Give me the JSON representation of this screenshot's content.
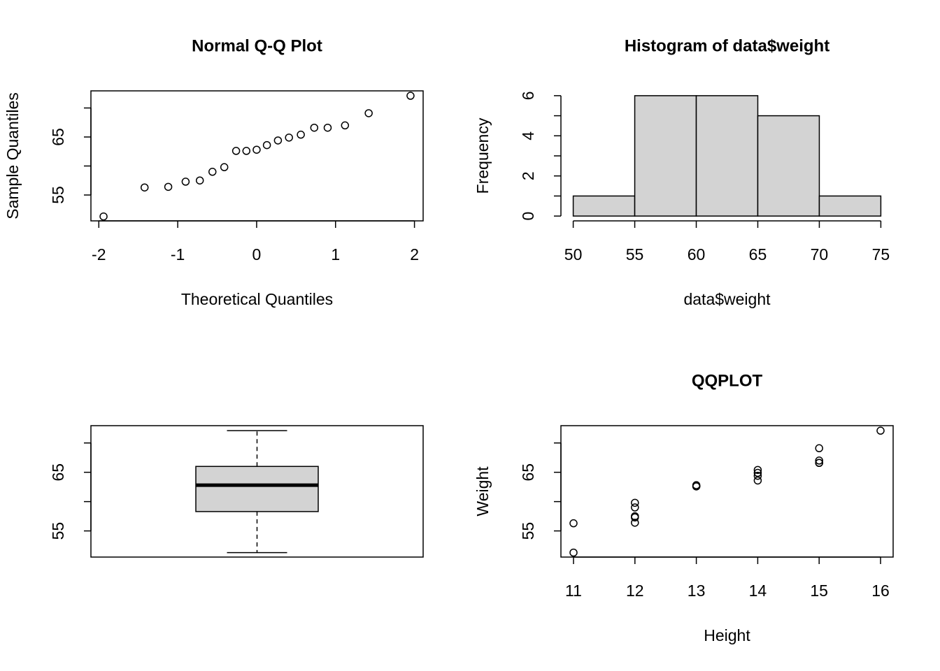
{
  "chart_data": [
    {
      "type": "scatter",
      "title": "Normal Q-Q Plot",
      "xlabel": "Theoretical Quantiles",
      "ylabel": "Sample Quantiles",
      "x": [
        -1.94,
        -1.42,
        -1.12,
        -0.9,
        -0.72,
        -0.56,
        -0.41,
        -0.26,
        -0.13,
        0,
        0.13,
        0.27,
        0.41,
        0.56,
        0.73,
        0.9,
        1.12,
        1.42,
        1.95
      ],
      "values": [
        51.3,
        56.3,
        56.4,
        57.3,
        57.5,
        59.0,
        59.8,
        62.6,
        62.6,
        62.8,
        63.6,
        64.4,
        64.9,
        65.4,
        66.6,
        66.6,
        67.0,
        69.1,
        72.1
      ],
      "xlim": [
        -2.1,
        2.11
      ],
      "ylim": [
        50.54,
        72.95
      ],
      "xticks": [
        -2,
        -1,
        0,
        1,
        2
      ],
      "yticks": [
        55,
        65
      ],
      "yminor_ticks": [
        60,
        70
      ],
      "frame": true,
      "color": "#000000"
    },
    {
      "type": "histogram",
      "title": "Histogram of data$weight",
      "xlabel": "data$weight",
      "ylabel": "Frequency",
      "bins": [
        50,
        55,
        60,
        65,
        70,
        75
      ],
      "values": [
        1,
        6,
        6,
        5,
        1
      ],
      "xlim": [
        50,
        75
      ],
      "ylim": [
        0,
        6
      ],
      "xticks": [
        50,
        55,
        60,
        65,
        70,
        75
      ],
      "yticks": [
        0,
        2,
        4,
        6
      ],
      "yminor_ticks": [
        1,
        3,
        5
      ],
      "frame": false,
      "color": "#d3d3d3"
    },
    {
      "type": "box",
      "box": {
        "min": 51.3,
        "q1": 58.3,
        "median": 62.8,
        "q3": 66.0,
        "max": 72.1
      },
      "ylim": [
        50.54,
        72.95
      ],
      "yticks": [
        55,
        65
      ],
      "yminor_ticks": [
        60,
        70
      ],
      "frame": true,
      "color": "#d3d3d3"
    },
    {
      "type": "scatter",
      "title": "QQPLOT",
      "xlabel": "Height",
      "ylabel": "Weight",
      "x": [
        11,
        11,
        12,
        12,
        12,
        12,
        12,
        13,
        13,
        13,
        14,
        14,
        14,
        14,
        15,
        15,
        15,
        15,
        16
      ],
      "values": [
        51.3,
        56.3,
        56.4,
        57.3,
        57.5,
        59.0,
        59.8,
        62.6,
        62.6,
        62.8,
        63.6,
        64.4,
        64.9,
        65.4,
        66.6,
        66.6,
        67.0,
        69.1,
        72.1
      ],
      "xlim": [
        10.795,
        16.205
      ],
      "ylim": [
        50.54,
        72.95
      ],
      "xticks": [
        11,
        12,
        13,
        14,
        15,
        16
      ],
      "yticks": [
        55,
        65
      ],
      "yminor_ticks": [
        60,
        70
      ],
      "frame": true,
      "color": "#000000"
    }
  ]
}
